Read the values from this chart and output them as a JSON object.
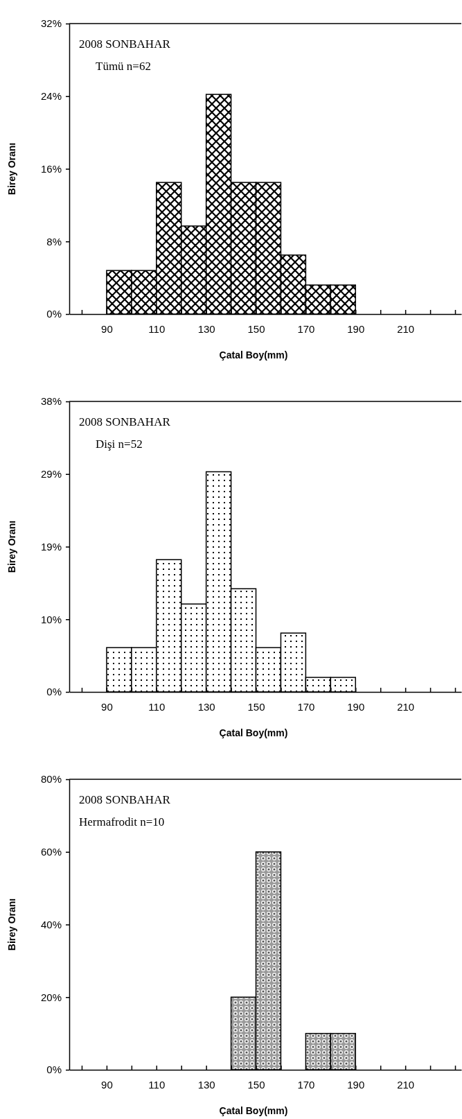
{
  "chart_data": [
    {
      "type": "histogram",
      "bins": [
        90,
        100,
        110,
        120,
        130,
        140,
        150,
        160,
        170,
        180,
        190
      ],
      "values": [
        4.8,
        4.8,
        14.5,
        9.7,
        24.2,
        14.5,
        14.5,
        6.5,
        3.2,
        3.2
      ],
      "color": "#000000",
      "xlim": [
        75,
        232.5
      ],
      "xticks": [
        {
          "value": 80,
          "label": null
        },
        {
          "value": 90,
          "label": "90"
        },
        {
          "value": 100,
          "label": null
        },
        {
          "value": 110,
          "label": "110"
        },
        {
          "value": 120,
          "label": null
        },
        {
          "value": 130,
          "label": "130"
        },
        {
          "value": 140,
          "label": null
        },
        {
          "value": 150,
          "label": "150"
        },
        {
          "value": 160,
          "label": null
        },
        {
          "value": 170,
          "label": "170"
        },
        {
          "value": 180,
          "label": null
        },
        {
          "value": 190,
          "label": "190"
        },
        {
          "value": 200,
          "label": null
        },
        {
          "value": 210,
          "label": "210"
        },
        {
          "value": 220,
          "label": null
        },
        {
          "value": 230,
          "label": null
        }
      ],
      "ylim": [
        0,
        32
      ],
      "yticks": [
        {
          "value": 0,
          "label": "0%"
        },
        {
          "value": 8,
          "label": "8%"
        },
        {
          "value": 16,
          "label": "16%"
        },
        {
          "value": 24,
          "label": "24%"
        },
        {
          "value": 32,
          "label": "32%"
        }
      ],
      "xlabel": "Çatal Boy(mm)",
      "ylabel": "Birey Oranı",
      "annotations": [
        "2008 SONBAHAR",
        "Tümü n=62"
      ]
    },
    {
      "type": "histogram",
      "bins": [
        90,
        100,
        110,
        120,
        130,
        140,
        150,
        160,
        170,
        180,
        190
      ],
      "values": [
        5.8,
        5.8,
        17.3,
        11.5,
        28.8,
        13.5,
        5.8,
        7.7,
        1.9,
        1.9
      ],
      "color": "#000000",
      "xlim": [
        75,
        232.5
      ],
      "xticks": [
        {
          "value": 80,
          "label": null
        },
        {
          "value": 90,
          "label": "90"
        },
        {
          "value": 100,
          "label": null
        },
        {
          "value": 110,
          "label": "110"
        },
        {
          "value": 120,
          "label": null
        },
        {
          "value": 130,
          "label": "130"
        },
        {
          "value": 140,
          "label": null
        },
        {
          "value": 150,
          "label": "150"
        },
        {
          "value": 160,
          "label": null
        },
        {
          "value": 170,
          "label": "170"
        },
        {
          "value": 180,
          "label": null
        },
        {
          "value": 190,
          "label": "190"
        },
        {
          "value": 200,
          "label": null
        },
        {
          "value": 210,
          "label": "210"
        },
        {
          "value": 220,
          "label": null
        },
        {
          "value": 230,
          "label": null
        }
      ],
      "ylim": [
        0,
        38
      ],
      "yticks": [
        {
          "value": 0,
          "label": "0%"
        },
        {
          "value": 9.5,
          "label": "10%"
        },
        {
          "value": 19,
          "label": "19%"
        },
        {
          "value": 28.5,
          "label": "29%"
        },
        {
          "value": 38,
          "label": "38%"
        }
      ],
      "xlabel": "Çatal Boy(mm)",
      "ylabel": "Birey Oranı",
      "annotations": [
        "2008 SONBAHAR",
        "Dişi n=52"
      ]
    },
    {
      "type": "histogram",
      "bins": [
        140,
        150,
        160,
        170,
        180,
        190
      ],
      "values": [
        20,
        60,
        null,
        10,
        10
      ],
      "color": "#000000",
      "xlim": [
        75,
        232.5
      ],
      "xticks": [
        {
          "value": 80,
          "label": null
        },
        {
          "value": 90,
          "label": "90"
        },
        {
          "value": 100,
          "label": null
        },
        {
          "value": 110,
          "label": "110"
        },
        {
          "value": 120,
          "label": null
        },
        {
          "value": 130,
          "label": "130"
        },
        {
          "value": 140,
          "label": null
        },
        {
          "value": 150,
          "label": "150"
        },
        {
          "value": 160,
          "label": null
        },
        {
          "value": 170,
          "label": "170"
        },
        {
          "value": 180,
          "label": null
        },
        {
          "value": 190,
          "label": "190"
        },
        {
          "value": 200,
          "label": null
        },
        {
          "value": 210,
          "label": "210"
        },
        {
          "value": 220,
          "label": null
        },
        {
          "value": 230,
          "label": null
        }
      ],
      "ylim": [
        0,
        80
      ],
      "yticks": [
        {
          "value": 0,
          "label": "0%"
        },
        {
          "value": 20,
          "label": "20%"
        },
        {
          "value": 40,
          "label": "40%"
        },
        {
          "value": 60,
          "label": "60%"
        },
        {
          "value": 80,
          "label": "80%"
        }
      ],
      "xlabel": "Çatal Boy(mm)",
      "ylabel": "Birey Oranı",
      "annotations": [
        "2008 SONBAHAR",
        "Hermafrodit n=10"
      ]
    }
  ]
}
